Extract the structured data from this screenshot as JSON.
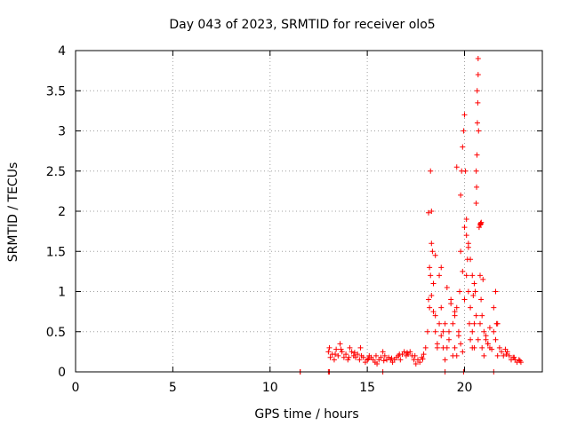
{
  "chart_data": {
    "type": "scatter",
    "title": "Day 043 of 2023, SRMTID for receiver olo5",
    "xlabel": "GPS time / hours",
    "ylabel": "SRMTID / TECUs",
    "xlim": [
      0,
      24
    ],
    "ylim": [
      0,
      4
    ],
    "x_ticks": [
      "0",
      "5",
      "10",
      "15",
      "20"
    ],
    "x_tick_values": [
      0,
      5,
      10,
      15,
      20
    ],
    "y_ticks": [
      "0",
      "0.5",
      "1",
      "1.5",
      "2",
      "2.5",
      "3",
      "3.5",
      "4"
    ],
    "y_tick_values": [
      0,
      0.5,
      1,
      1.5,
      2,
      2.5,
      3,
      3.5,
      4
    ],
    "grid": true,
    "marker": "+",
    "marker_color": "#ff0000",
    "series": [
      {
        "name": "SRMTID",
        "x": [
          11.55,
          13.0,
          13.1,
          13.2,
          13.3,
          13.4,
          13.5,
          13.6,
          13.7,
          13.8,
          13.9,
          14.0,
          14.1,
          14.2,
          14.3,
          14.4,
          14.5,
          14.6,
          14.7,
          14.8,
          14.9,
          15.0,
          15.1,
          15.2,
          15.3,
          15.4,
          15.5,
          15.6,
          15.7,
          15.8,
          15.9,
          16.0,
          16.1,
          16.2,
          16.3,
          16.4,
          16.5,
          16.6,
          16.7,
          16.8,
          16.9,
          17.0,
          17.1,
          17.2,
          17.3,
          17.4,
          17.5,
          17.6,
          17.7,
          17.8,
          17.9,
          18.0,
          18.1,
          18.15,
          18.2,
          18.25,
          18.3,
          18.35,
          18.4,
          18.5,
          18.6,
          18.7,
          18.8,
          18.9,
          19.0,
          19.1,
          19.2,
          19.3,
          19.4,
          19.5,
          19.6,
          19.7,
          19.75,
          19.8,
          19.85,
          19.9,
          19.95,
          20.0,
          20.05,
          20.1,
          20.15,
          20.2,
          20.25,
          20.3,
          20.4,
          20.5,
          20.55,
          20.6,
          20.65,
          20.7,
          20.75,
          20.8,
          20.85,
          20.9,
          21.0,
          21.1,
          21.2,
          21.3,
          21.4,
          21.5,
          21.6,
          21.7,
          21.8,
          21.9,
          22.0,
          22.1,
          22.2,
          22.3,
          22.4,
          22.5,
          22.6,
          22.7,
          22.8,
          22.9,
          18.2,
          18.25,
          18.3,
          18.4,
          18.5,
          18.6,
          18.7,
          18.8,
          18.9,
          19.0,
          19.2,
          19.4,
          19.5,
          19.6,
          19.7,
          19.8,
          19.9,
          20.0,
          20.1,
          20.2,
          20.3,
          20.4,
          20.5,
          20.6,
          20.7,
          20.8,
          20.9,
          21.0,
          21.1,
          21.2,
          21.5,
          21.6,
          21.7,
          20.6,
          20.62,
          20.64,
          20.66,
          20.68,
          20.7,
          20.72,
          19.6,
          19.8,
          20.0,
          20.1,
          20.2,
          20.3,
          20.4,
          20.5,
          20.8,
          20.82,
          20.84,
          20.86,
          18.15,
          18.3,
          18.5,
          18.8,
          19.1,
          19.3,
          19.5,
          19.9,
          20.45,
          20.95,
          21.3,
          21.65,
          13.05,
          13.35,
          13.65,
          14.05,
          14.35,
          14.65,
          15.05,
          15.45,
          15.85,
          16.25,
          16.65,
          17.05,
          17.45,
          17.85,
          22.15,
          22.55,
          22.85,
          11.55,
          13.0,
          13.05,
          15.8,
          19.0,
          19.95,
          21.5
        ],
        "y": [
          0.0,
          0.25,
          0.18,
          0.22,
          0.15,
          0.28,
          0.2,
          0.35,
          0.25,
          0.18,
          0.22,
          0.15,
          0.3,
          0.25,
          0.2,
          0.18,
          0.22,
          0.15,
          0.2,
          0.18,
          0.12,
          0.15,
          0.2,
          0.18,
          0.15,
          0.12,
          0.1,
          0.15,
          0.18,
          0.25,
          0.2,
          0.15,
          0.18,
          0.15,
          0.12,
          0.15,
          0.18,
          0.2,
          0.15,
          0.22,
          0.25,
          0.2,
          0.22,
          0.25,
          0.2,
          0.15,
          0.1,
          0.15,
          0.12,
          0.18,
          0.22,
          0.3,
          0.5,
          0.9,
          1.3,
          2.5,
          2.0,
          1.5,
          1.1,
          0.7,
          0.3,
          1.2,
          0.8,
          0.5,
          0.6,
          0.3,
          0.5,
          0.9,
          0.6,
          0.3,
          0.2,
          0.5,
          1.0,
          1.5,
          2.5,
          2.8,
          3.0,
          3.2,
          2.5,
          1.9,
          1.4,
          1.0,
          0.6,
          0.4,
          0.3,
          0.6,
          1.0,
          2.5,
          3.5,
          3.9,
          1.8,
          1.2,
          0.9,
          0.7,
          0.5,
          0.4,
          0.35,
          0.3,
          0.28,
          0.5,
          1.0,
          0.6,
          0.3,
          0.25,
          0.2,
          0.28,
          0.25,
          0.2,
          0.15,
          0.18,
          0.15,
          0.12,
          0.15,
          0.12,
          0.8,
          1.2,
          0.95,
          0.75,
          0.5,
          0.35,
          0.6,
          0.45,
          0.3,
          0.15,
          0.4,
          0.2,
          0.7,
          0.8,
          0.45,
          0.35,
          0.25,
          0.9,
          1.2,
          1.6,
          0.8,
          0.5,
          0.3,
          0.7,
          0.4,
          0.6,
          0.3,
          0.2,
          0.45,
          0.35,
          0.8,
          0.4,
          0.2,
          2.1,
          2.3,
          2.7,
          3.1,
          3.35,
          3.7,
          3.0,
          2.55,
          2.2,
          1.8,
          1.7,
          1.55,
          1.4,
          1.2,
          1.1,
          1.83,
          1.85,
          1.84,
          1.86,
          1.98,
          1.6,
          1.45,
          1.3,
          1.05,
          0.85,
          0.75,
          1.25,
          0.95,
          1.15,
          0.55,
          0.6,
          0.3,
          0.22,
          0.28,
          0.18,
          0.24,
          0.3,
          0.16,
          0.2,
          0.14,
          0.17,
          0.22,
          0.24,
          0.2,
          0.16,
          0.22,
          0.18,
          0.14,
          0.0,
          0.0,
          0.0,
          0.0,
          0.0,
          0.0,
          0.0
        ]
      }
    ]
  }
}
